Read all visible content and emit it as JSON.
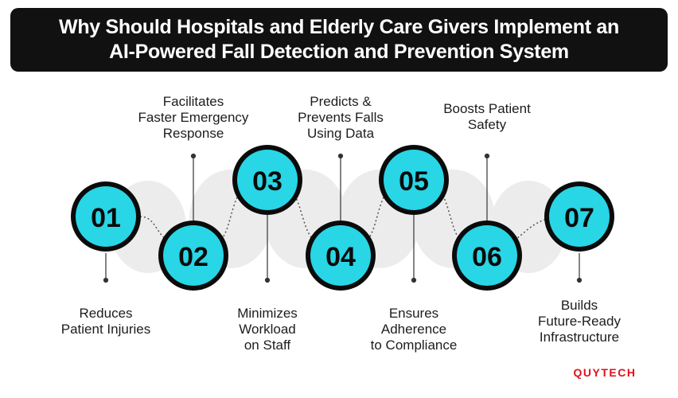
{
  "header": {
    "title_line1": "Why Should Hospitals and Elderly Care Givers Implement an",
    "title_line2": "AI-Powered Fall Detection and Prevention System"
  },
  "steps": [
    {
      "number": "01",
      "caption": [
        "Reduces",
        "Patient Injuries"
      ]
    },
    {
      "number": "02",
      "caption": [
        "Facilitates",
        "Faster Emergency",
        "Response"
      ]
    },
    {
      "number": "03",
      "caption": [
        "Minimizes",
        "Workload",
        "on Staff"
      ]
    },
    {
      "number": "04",
      "caption": [
        "Predicts &",
        "Prevents Falls",
        "Using Data"
      ]
    },
    {
      "number": "05",
      "caption": [
        "Ensures",
        "Adherence",
        "to Compliance"
      ]
    },
    {
      "number": "06",
      "caption": [
        "Boosts Patient",
        "Safety"
      ]
    },
    {
      "number": "07",
      "caption": [
        "Builds",
        "Future-Ready",
        "Infrastructure"
      ]
    }
  ],
  "brand": "QUYTECH",
  "colors": {
    "circle_fill": "#28d6e6",
    "circle_ring": "#0b0b0b",
    "track_gray": "#ececec",
    "title_bg": "#111111",
    "brand_red": "#e0111b"
  }
}
